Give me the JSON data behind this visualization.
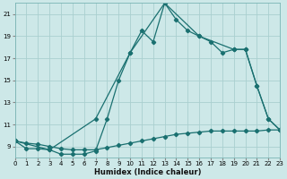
{
  "xlabel": "Humidex (Indice chaleur)",
  "bg_color": "#cde8e8",
  "grid_color": "#aacfcf",
  "line_color": "#1a7070",
  "x_min": 0,
  "x_max": 23,
  "y_min": 8,
  "y_max": 22,
  "yticks": [
    9,
    11,
    13,
    15,
    17,
    19,
    21
  ],
  "xticks": [
    0,
    1,
    2,
    3,
    4,
    5,
    6,
    7,
    8,
    9,
    10,
    11,
    12,
    13,
    14,
    15,
    16,
    17,
    18,
    19,
    20,
    21,
    22,
    23
  ],
  "series": [
    {
      "x": [
        0,
        1,
        2,
        3,
        4,
        5,
        6,
        7,
        8,
        9,
        10,
        11,
        12,
        13,
        14,
        15,
        16,
        17,
        18,
        19,
        20,
        21,
        22,
        23
      ],
      "y": [
        9.5,
        8.8,
        8.8,
        8.7,
        8.3,
        8.3,
        8.3,
        8.6,
        11.5,
        15.0,
        17.5,
        19.5,
        18.5,
        22.0,
        20.5,
        19.5,
        19.0,
        18.5,
        17.5,
        17.8,
        17.8,
        14.5,
        11.5,
        10.5
      ]
    },
    {
      "x": [
        0,
        3,
        7,
        10,
        13,
        16,
        19,
        20,
        21,
        22,
        23
      ],
      "y": [
        9.5,
        8.7,
        11.5,
        17.5,
        22.0,
        19.0,
        17.8,
        17.8,
        14.5,
        11.5,
        10.5
      ]
    },
    {
      "x": [
        0,
        1,
        2,
        3,
        4,
        5,
        6,
        7,
        8,
        9,
        10,
        11,
        12,
        13,
        14,
        15,
        16,
        17,
        18,
        19,
        20,
        21,
        22,
        23
      ],
      "y": [
        9.5,
        9.3,
        9.2,
        9.0,
        8.8,
        8.7,
        8.7,
        8.7,
        8.9,
        9.1,
        9.3,
        9.5,
        9.7,
        9.9,
        10.1,
        10.2,
        10.3,
        10.4,
        10.4,
        10.4,
        10.4,
        10.4,
        10.5,
        10.5
      ]
    }
  ]
}
